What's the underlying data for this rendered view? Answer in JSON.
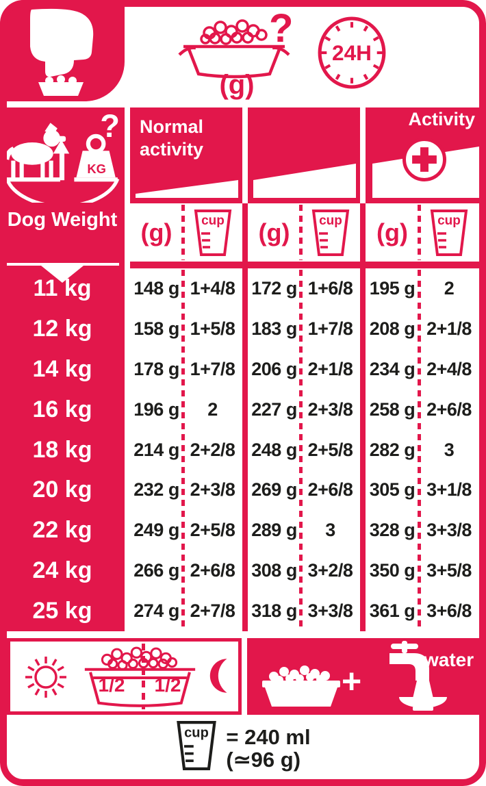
{
  "colors": {
    "red": "#E2174B",
    "ink": "#1D1D1B",
    "white": "#FFFFFF"
  },
  "header": {
    "grams_label": "(g)",
    "question_mark": "?",
    "clock_label": "24H"
  },
  "activity": {
    "normal_line1": "Normal",
    "normal_line2": "activity",
    "plus_title": "Activity"
  },
  "weight_panel": {
    "title": "Dog Weight",
    "kg_label": "KG",
    "question_mark": "?"
  },
  "table": {
    "grams_header": "(g)",
    "cup_header": "cup",
    "rows": [
      {
        "weight": "11 kg",
        "g1": "148 g",
        "c1": "1+4/8",
        "g2": "172 g",
        "c2": "1+6/8",
        "g3": "195 g",
        "c3": "2"
      },
      {
        "weight": "12 kg",
        "g1": "158 g",
        "c1": "1+5/8",
        "g2": "183 g",
        "c2": "1+7/8",
        "g3": "208 g",
        "c3": "2+1/8"
      },
      {
        "weight": "14 kg",
        "g1": "178 g",
        "c1": "1+7/8",
        "g2": "206 g",
        "c2": "2+1/8",
        "g3": "234 g",
        "c3": "2+4/8"
      },
      {
        "weight": "16 kg",
        "g1": "196 g",
        "c1": "2",
        "g2": "227 g",
        "c2": "2+3/8",
        "g3": "258 g",
        "c3": "2+6/8"
      },
      {
        "weight": "18 kg",
        "g1": "214 g",
        "c1": "2+2/8",
        "g2": "248 g",
        "c2": "2+5/8",
        "g3": "282 g",
        "c3": "3"
      },
      {
        "weight": "20 kg",
        "g1": "232 g",
        "c1": "2+3/8",
        "g2": "269 g",
        "c2": "2+6/8",
        "g3": "305 g",
        "c3": "3+1/8"
      },
      {
        "weight": "22 kg",
        "g1": "249 g",
        "c1": "2+5/8",
        "g2": "289 g",
        "c2": "3",
        "g3": "328 g",
        "c3": "3+3/8"
      },
      {
        "weight": "24 kg",
        "g1": "266 g",
        "c1": "2+6/8",
        "g2": "308 g",
        "c2": "3+2/8",
        "g3": "350 g",
        "c3": "3+5/8"
      },
      {
        "weight": "25 kg",
        "g1": "274 g",
        "c1": "2+7/8",
        "g2": "318 g",
        "c2": "3+3/8",
        "g3": "361 g",
        "c3": "3+6/8"
      }
    ]
  },
  "bottom": {
    "half_left": "1/2",
    "half_right": "1/2",
    "plus_sign": "+",
    "water_label": "water"
  },
  "footer": {
    "cup_label": "cup",
    "equals_ml": "= 240 ml",
    "approx_g": "(≃96 g)"
  },
  "chart_data": {
    "type": "table",
    "column_groups": [
      "Normal activity",
      "",
      "Activity +"
    ],
    "columns": [
      "Dog Weight",
      "(g)",
      "cup",
      "(g)",
      "cup",
      "(g)",
      "cup"
    ],
    "rows": [
      [
        "11 kg",
        "148 g",
        "1+4/8",
        "172 g",
        "1+6/8",
        "195 g",
        "2"
      ],
      [
        "12 kg",
        "158 g",
        "1+5/8",
        "183 g",
        "1+7/8",
        "208 g",
        "2+1/8"
      ],
      [
        "14 kg",
        "178 g",
        "1+7/8",
        "206 g",
        "2+1/8",
        "234 g",
        "2+4/8"
      ],
      [
        "16 kg",
        "196 g",
        "2",
        "227 g",
        "2+3/8",
        "258 g",
        "2+6/8"
      ],
      [
        "18 kg",
        "214 g",
        "2+2/8",
        "248 g",
        "2+5/8",
        "282 g",
        "3"
      ],
      [
        "20 kg",
        "232 g",
        "2+3/8",
        "269 g",
        "2+6/8",
        "305 g",
        "3+1/8"
      ],
      [
        "22 kg",
        "249 g",
        "2+5/8",
        "289 g",
        "3",
        "328 g",
        "3+3/8"
      ],
      [
        "24 kg",
        "266 g",
        "2+6/8",
        "308 g",
        "3+2/8",
        "350 g",
        "3+5/8"
      ],
      [
        "25 kg",
        "274 g",
        "2+7/8",
        "318 g",
        "3+3/8",
        "361 g",
        "3+6/8"
      ]
    ],
    "units_shown": [
      "(g)",
      "24H",
      "cup"
    ],
    "footnote": "cup = 240 ml (≃96 g)"
  }
}
